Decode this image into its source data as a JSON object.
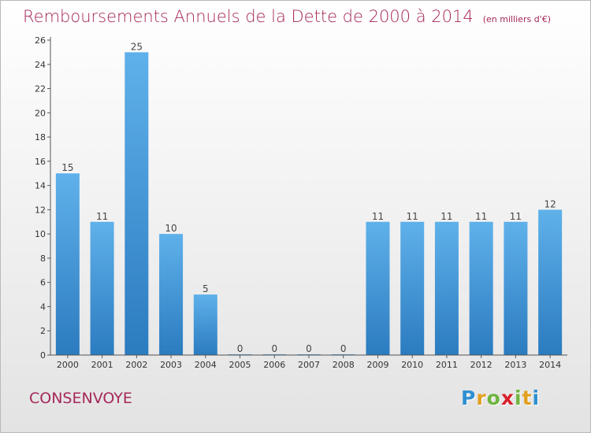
{
  "header": {
    "title": "Remboursements Annuels de la Dette de 2000 à 2014",
    "subtitle": "(en milliers d'€)"
  },
  "footer": {
    "town": "CONSENVOYE",
    "logo": "Proxiti"
  },
  "colors": {
    "title": "#a5285a",
    "bar_light": "#5fb1ea",
    "bar_dark": "#2b7bc0"
  },
  "chart_data": {
    "type": "bar",
    "title": "Remboursements Annuels de la Dette de 2000 à 2014",
    "subtitle": "(en milliers d'€)",
    "categories": [
      "2000",
      "2001",
      "2002",
      "2003",
      "2004",
      "2005",
      "2006",
      "2007",
      "2008",
      "2009",
      "2010",
      "2011",
      "2012",
      "2013",
      "2014"
    ],
    "values": [
      15,
      11,
      25,
      10,
      5,
      0,
      0,
      0,
      0,
      11,
      11,
      11,
      11,
      11,
      12
    ],
    "ylim": [
      0,
      26
    ],
    "yticks": [
      0,
      2,
      4,
      6,
      8,
      10,
      12,
      14,
      16,
      18,
      20,
      22,
      24,
      26
    ],
    "grid": false,
    "data_labels": true
  }
}
